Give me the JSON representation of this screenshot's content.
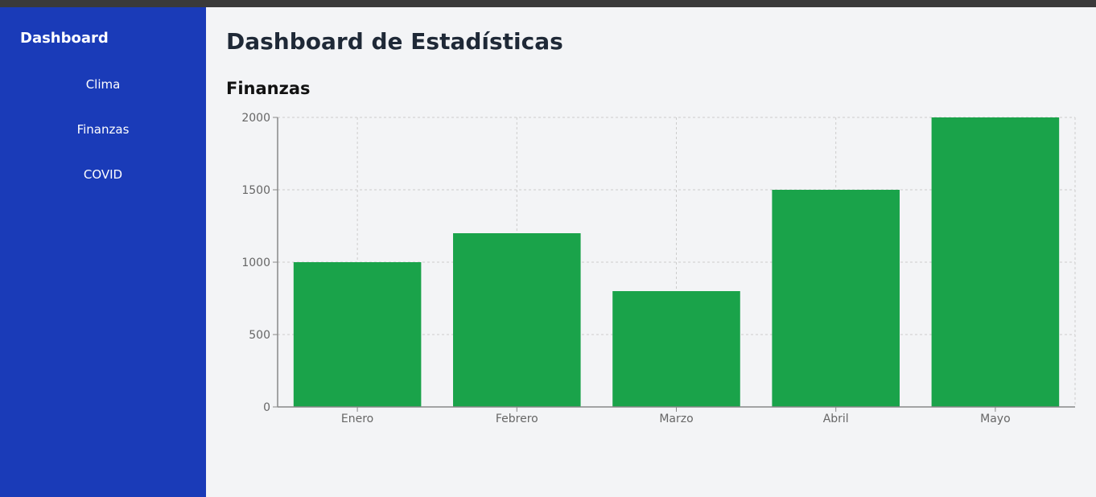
{
  "sidebar": {
    "brand": "Dashboard",
    "items": [
      {
        "label": "Clima"
      },
      {
        "label": "Finanzas"
      },
      {
        "label": "COVID"
      }
    ]
  },
  "main": {
    "title": "Dashboard de Estadísticas",
    "section_title": "Finanzas"
  },
  "colors": {
    "sidebar_bg": "#1a3bb8",
    "bar_fill": "#1aa34a",
    "page_bg": "#f3f4f6"
  },
  "chart_data": {
    "type": "bar",
    "categories": [
      "Enero",
      "Febrero",
      "Marzo",
      "Abril",
      "Mayo"
    ],
    "values": [
      1000,
      1200,
      800,
      1500,
      2000
    ],
    "ylim": [
      0,
      2000
    ],
    "yticks": [
      0,
      500,
      1000,
      1500,
      2000
    ],
    "grid": true,
    "legend": false
  }
}
